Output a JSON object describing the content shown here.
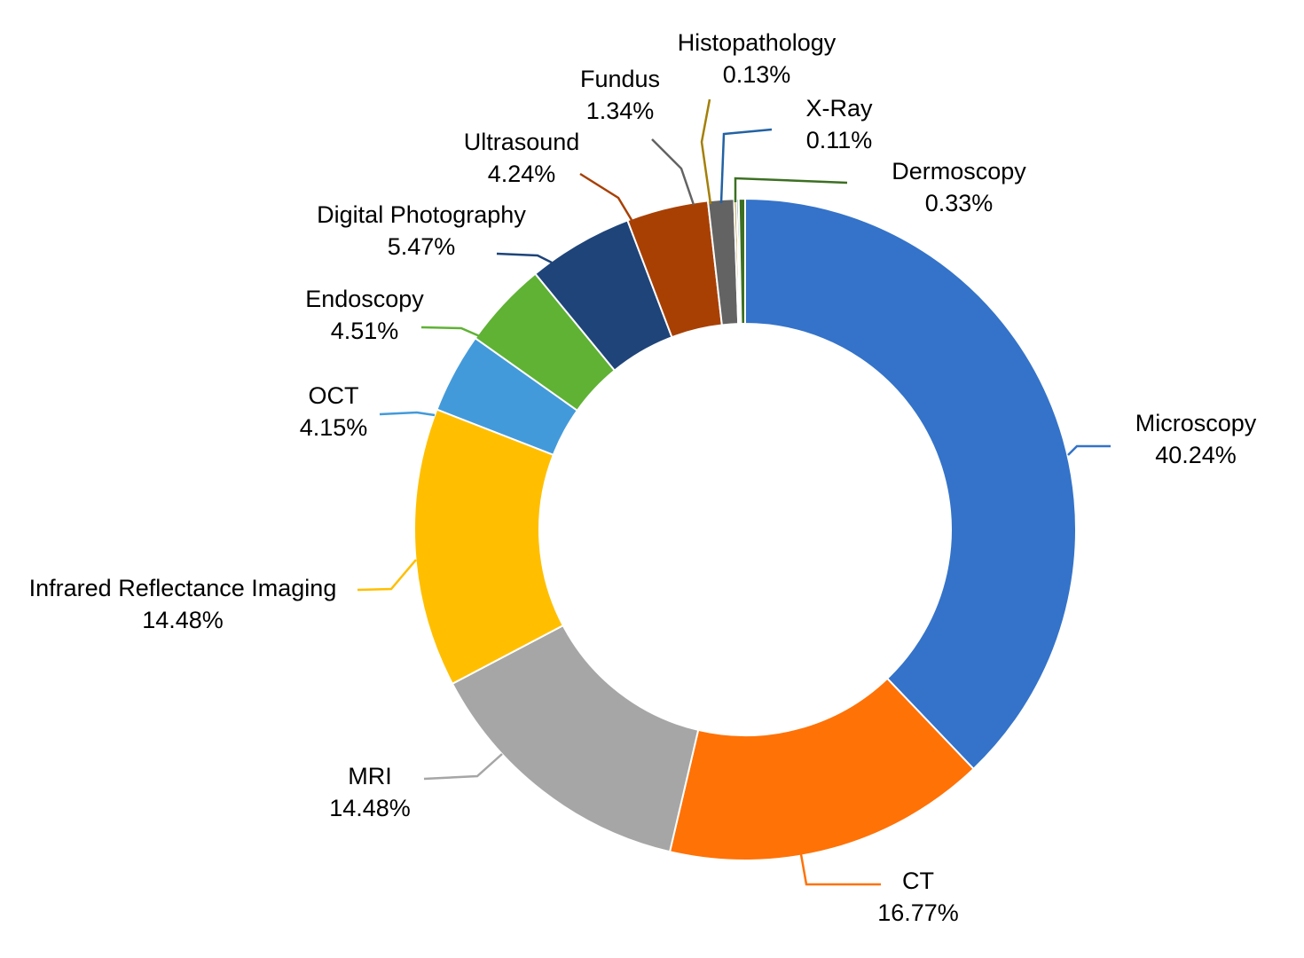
{
  "chart_data": {
    "type": "pie",
    "variant": "donut",
    "start_angle_deg": 0,
    "direction": "clockwise",
    "slices": [
      {
        "label": "Microscopy",
        "value": 40.24,
        "value_label": "40.24%",
        "color": "#3473C9"
      },
      {
        "label": "CT",
        "value": 16.77,
        "value_label": "16.77%",
        "color": "#FF7206"
      },
      {
        "label": "MRI",
        "value": 14.48,
        "value_label": "14.48%",
        "color": "#A6A6A6"
      },
      {
        "label": "Infrared Reflectance Imaging",
        "value": 14.48,
        "value_label": "14.48%",
        "color": "#FFBF00"
      },
      {
        "label": "OCT",
        "value": 4.15,
        "value_label": "4.15%",
        "color": "#439ADA"
      },
      {
        "label": "Endoscopy",
        "value": 4.51,
        "value_label": "4.51%",
        "color": "#5FB234"
      },
      {
        "label": "Digital Photography",
        "value": 5.47,
        "value_label": "5.47%",
        "color": "#1E4479"
      },
      {
        "label": "Ultrasound",
        "value": 4.24,
        "value_label": "4.24%",
        "color": "#A84004"
      },
      {
        "label": "Fundus",
        "value": 1.34,
        "value_label": "1.34%",
        "color": "#636363"
      },
      {
        "label": "Histopathology",
        "value": 0.13,
        "value_label": "0.13%",
        "color": "#A37F08"
      },
      {
        "label": "X-Ray",
        "value": 0.11,
        "value_label": "0.11%",
        "color": "#2262A3"
      },
      {
        "label": "Dermoscopy",
        "value": 0.33,
        "value_label": "0.33%",
        "color": "#3C6F22"
      }
    ]
  }
}
